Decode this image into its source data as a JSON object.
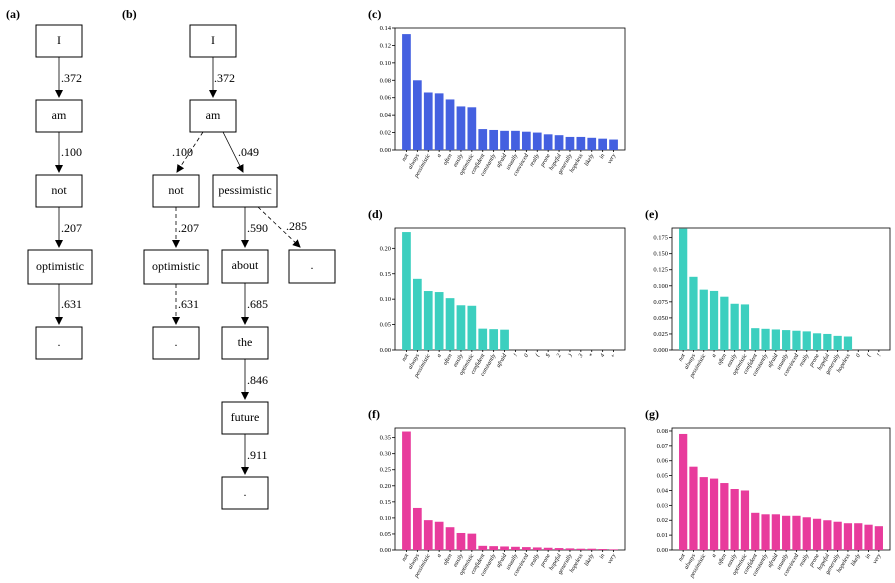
{
  "panel_labels": {
    "a": "(a)",
    "b": "(b)",
    "c": "(c)",
    "d": "(d)",
    "e": "(e)",
    "f": "(f)",
    "g": "(g)"
  },
  "tree_a": {
    "nodes": [
      "I",
      "am",
      "not",
      "optimistic",
      "."
    ],
    "edges": [
      ".372",
      ".100",
      ".207",
      ".631"
    ]
  },
  "tree_b": {
    "nodes": {
      "I": "I",
      "am": "am",
      "not": "not",
      "pessimistic": "pessimistic",
      "optimistic": "optimistic",
      "dot_left": ".",
      "about": "about",
      "dot_right": ".",
      "the": "the",
      "future": "future",
      "dot_bottom": "."
    },
    "edges": {
      "i_am": ".372",
      "am_not": ".100",
      "am_pess": ".049",
      "not_opt": ".207",
      "opt_dot": ".631",
      "pess_about": ".590",
      "pess_dot": ".285",
      "about_the": ".685",
      "the_future": ".846",
      "future_dot": ".911"
    }
  },
  "chart_data": [
    {
      "id": "c",
      "type": "bar",
      "color": "#4460e0",
      "ylim": [
        0,
        0.14
      ],
      "yticks": [
        "0.00",
        "0.02",
        "0.04",
        "0.06",
        "0.08",
        "0.10",
        "0.12",
        "0.14"
      ],
      "categories": [
        "not",
        "always",
        "pessimistic",
        "a",
        "often",
        "easily",
        "optimistic",
        "confident",
        "constantly",
        "afraid",
        "usually",
        "convinced",
        "really",
        "prone",
        "hopeful",
        "generally",
        "hopeless",
        "likely",
        "in",
        "very"
      ],
      "values": [
        0.133,
        0.08,
        0.066,
        0.065,
        0.058,
        0.05,
        0.049,
        0.024,
        0.023,
        0.022,
        0.022,
        0.021,
        0.02,
        0.018,
        0.017,
        0.015,
        0.015,
        0.014,
        0.013,
        0.012
      ]
    },
    {
      "id": "d",
      "type": "bar",
      "color": "#3ccfbf",
      "ylim": [
        0,
        0.24
      ],
      "yticks": [
        "0.00",
        "0.05",
        "0.10",
        "0.15",
        "0.20"
      ],
      "categories": [
        "not",
        "always",
        "pessimistic",
        "a",
        "often",
        "easily",
        "optimistic",
        "confident",
        "constantly",
        "afraid",
        "!",
        "0",
        "(",
        "$",
        "2",
        ")",
        "3",
        "*",
        "4",
        "+"
      ],
      "values": [
        0.232,
        0.14,
        0.116,
        0.114,
        0.102,
        0.088,
        0.087,
        0.042,
        0.041,
        0.04,
        0,
        0,
        0,
        0,
        0,
        0,
        0,
        0,
        0,
        0
      ]
    },
    {
      "id": "e",
      "type": "bar",
      "color": "#3ccfbf",
      "ylim": [
        0,
        0.19
      ],
      "yticks": [
        "0.000",
        "0.025",
        "0.050",
        "0.075",
        "0.100",
        "0.125",
        "0.150",
        "0.175"
      ],
      "categories": [
        "not",
        "always",
        "pessimistic",
        "a",
        "often",
        "easily",
        "optimistic",
        "confident",
        "constantly",
        "afraid",
        "usually",
        "convinced",
        "really",
        "prone",
        "hopeful",
        "generally",
        "hopeless",
        "0",
        "(",
        "!"
      ],
      "values": [
        0.189,
        0.114,
        0.094,
        0.092,
        0.083,
        0.072,
        0.071,
        0.034,
        0.033,
        0.032,
        0.031,
        0.03,
        0.029,
        0.026,
        0.025,
        0.022,
        0.021,
        0,
        0,
        0
      ]
    },
    {
      "id": "f",
      "type": "bar",
      "color": "#e83b9c",
      "ylim": [
        0,
        0.38
      ],
      "yticks": [
        "0.00",
        "0.05",
        "0.10",
        "0.15",
        "0.20",
        "0.25",
        "0.30",
        "0.35"
      ],
      "categories": [
        "not",
        "always",
        "pessimistic",
        "a",
        "often",
        "easily",
        "optimistic",
        "confident",
        "constantly",
        "afraid",
        "usually",
        "convinced",
        "really",
        "prone",
        "hopeful",
        "generally",
        "hopeless",
        "likely",
        "in",
        "very"
      ],
      "values": [
        0.369,
        0.131,
        0.093,
        0.088,
        0.071,
        0.053,
        0.051,
        0.013,
        0.012,
        0.011,
        0.01,
        0.009,
        0.008,
        0.007,
        0.006,
        0.005,
        0.004,
        0.004,
        0.003,
        0.002
      ]
    },
    {
      "id": "g",
      "type": "bar",
      "color": "#e83b9c",
      "ylim": [
        0,
        0.082
      ],
      "yticks": [
        "0.00",
        "0.01",
        "0.02",
        "0.03",
        "0.04",
        "0.05",
        "0.06",
        "0.07",
        "0.08"
      ],
      "categories": [
        "not",
        "always",
        "pessimistic",
        "a",
        "often",
        "easily",
        "optimistic",
        "confident",
        "constantly",
        "afraid",
        "usually",
        "convinced",
        "really",
        "prone",
        "hopeful",
        "generally",
        "hopeless",
        "likely",
        "in",
        "very"
      ],
      "values": [
        0.078,
        0.056,
        0.049,
        0.048,
        0.045,
        0.041,
        0.04,
        0.025,
        0.024,
        0.024,
        0.023,
        0.023,
        0.022,
        0.021,
        0.02,
        0.019,
        0.018,
        0.018,
        0.017,
        0.016
      ]
    }
  ]
}
